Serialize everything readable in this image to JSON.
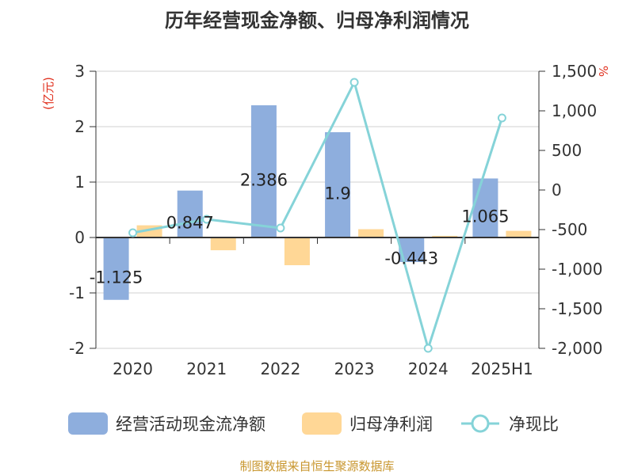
{
  "title": "历年经营现金净额、归母净利润情况",
  "source": "制图数据来自恒生聚源数据库",
  "colors": {
    "cash": "#8eaedd",
    "profit": "#ffd796",
    "ratio": "#85d3d8",
    "unit": "#e0301e"
  },
  "chart_data": {
    "type": "bar",
    "categories": [
      "2020",
      "2021",
      "2022",
      "2023",
      "2024",
      "2025H1"
    ],
    "left_axis": {
      "unit": "(亿元)",
      "ylim": [
        -2,
        3
      ],
      "ticks": [
        "3",
        "2",
        "1",
        "0",
        "-1",
        "-2"
      ]
    },
    "right_axis": {
      "unit": "%",
      "ylim": [
        -2000,
        1500
      ],
      "ticks": [
        "1,500",
        "1,000",
        "500",
        "0",
        "-500",
        "-1,000",
        "-1,500",
        "-2,000"
      ]
    },
    "series": [
      {
        "name": "经营活动现金流净额",
        "kind": "bar",
        "axis": "left",
        "values": [
          -1.125,
          0.847,
          2.386,
          1.9,
          -0.443,
          1.065
        ],
        "labels": [
          "-1.125",
          "0.847",
          "2.386",
          "1.9",
          "-0.443",
          "1.065"
        ]
      },
      {
        "name": "归母净利润",
        "kind": "bar",
        "axis": "left",
        "values": [
          0.22,
          -0.23,
          -0.5,
          0.15,
          0.03,
          0.12
        ]
      },
      {
        "name": "净现比",
        "kind": "line",
        "axis": "right",
        "values": [
          -540,
          -370,
          -480,
          1360,
          -2000,
          910
        ]
      }
    ],
    "legend": "bottom",
    "grid": true
  }
}
